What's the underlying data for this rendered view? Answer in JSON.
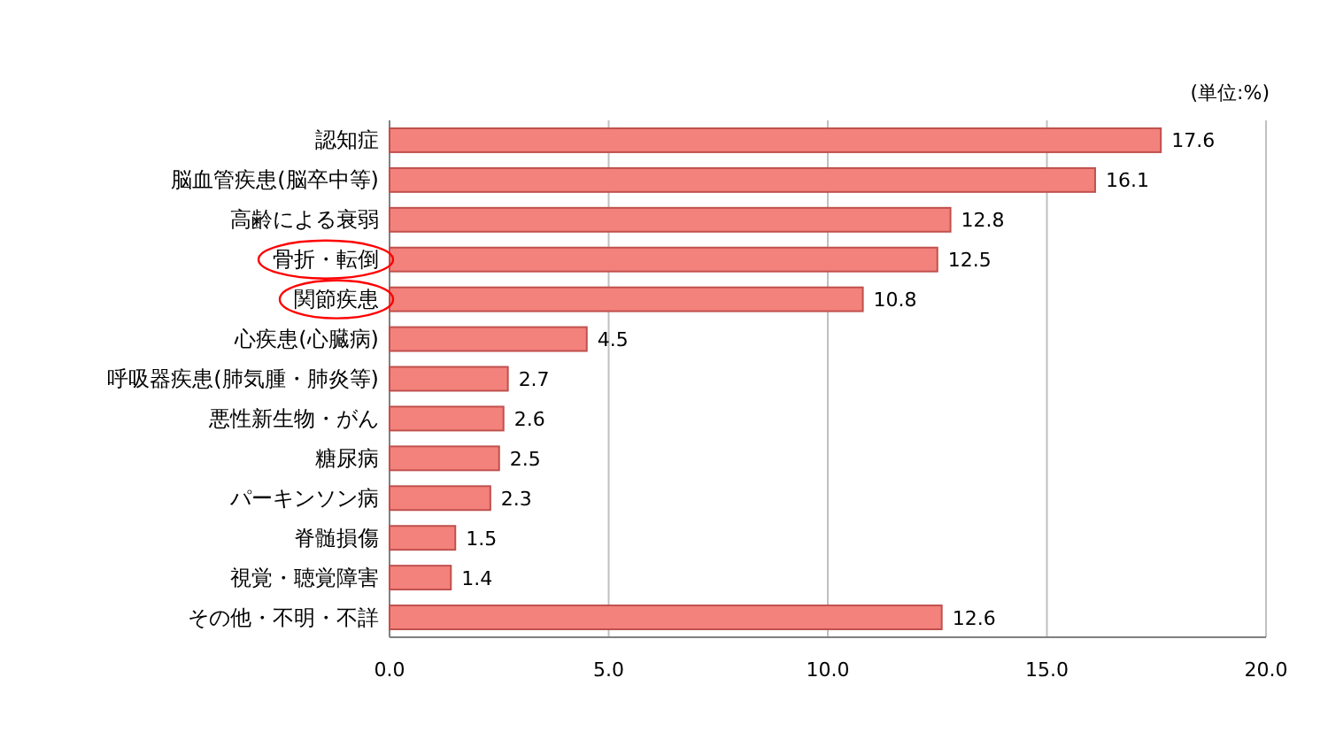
{
  "chart_data": {
    "type": "bar",
    "orientation": "horizontal",
    "categories": [
      "認知症",
      "脳血管疾患(脳卒中等)",
      "高齢による衰弱",
      "骨折・転倒",
      "関節疾患",
      "心疾患(心臓病)",
      "呼吸器疾患(肺気腫・肺炎等)",
      "悪性新生物・がん",
      "糖尿病",
      "パーキンソン病",
      "脊髄損傷",
      "視覚・聴覚障害",
      "その他・不明・不詳"
    ],
    "values": [
      17.6,
      16.1,
      12.8,
      12.5,
      10.8,
      4.5,
      2.7,
      2.6,
      2.5,
      2.3,
      1.5,
      1.4,
      12.6
    ],
    "color": "#f4827c",
    "xlim": [
      0,
      20
    ],
    "xticks": [
      {
        "value": 0,
        "label": "0.0"
      },
      {
        "value": 5,
        "label": "5.0"
      },
      {
        "value": 10,
        "label": "10.0"
      },
      {
        "value": 15,
        "label": "15.0"
      },
      {
        "value": 20,
        "label": "20.0"
      }
    ],
    "grid": "x",
    "data_labels": true,
    "annotations": [
      "(単位:%)"
    ]
  }
}
